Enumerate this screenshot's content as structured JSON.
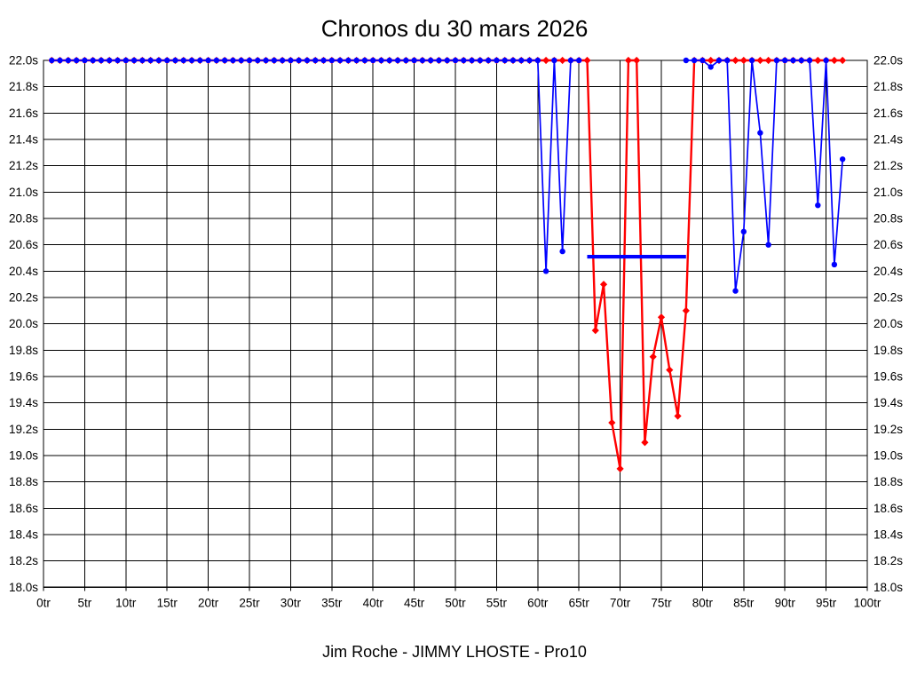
{
  "chart_data": {
    "type": "line",
    "title": "Chronos du 30 mars 2026",
    "subtitle": "Jim Roche - JIMMY LHOSTE - Pro10",
    "x_unit": "tr",
    "y_unit": "s",
    "xlim": [
      0,
      100
    ],
    "ylim": [
      18.0,
      22.0
    ],
    "x_ticks": [
      0,
      5,
      10,
      15,
      20,
      25,
      30,
      35,
      40,
      45,
      50,
      55,
      60,
      65,
      70,
      75,
      80,
      85,
      90,
      95,
      100
    ],
    "y_ticks": [
      22.0,
      21.8,
      21.6,
      21.4,
      21.2,
      21.0,
      20.8,
      20.6,
      20.4,
      20.2,
      20.0,
      19.8,
      19.6,
      19.4,
      19.2,
      19.0,
      18.8,
      18.6,
      18.4,
      18.2,
      18.0
    ],
    "grid": true,
    "legend": "none",
    "first_lap": 1,
    "series": [
      {
        "name": "red",
        "color": "#ff0000",
        "marker": "diamond",
        "values": [
          22.0,
          22.0,
          22.0,
          22.0,
          22.0,
          22.0,
          22.0,
          22.0,
          22.0,
          22.0,
          22.0,
          22.0,
          22.0,
          22.0,
          22.0,
          22.0,
          22.0,
          22.0,
          22.0,
          22.0,
          22.0,
          22.0,
          22.0,
          22.0,
          22.0,
          22.0,
          22.0,
          22.0,
          22.0,
          22.0,
          22.0,
          22.0,
          22.0,
          22.0,
          22.0,
          22.0,
          22.0,
          22.0,
          22.0,
          22.0,
          22.0,
          22.0,
          22.0,
          22.0,
          22.0,
          22.0,
          22.0,
          22.0,
          22.0,
          22.0,
          22.0,
          22.0,
          22.0,
          22.0,
          22.0,
          22.0,
          22.0,
          22.0,
          22.0,
          22.0,
          22.0,
          22.0,
          22.0,
          22.0,
          22.0,
          22.0,
          19.95,
          20.3,
          19.25,
          18.9,
          22.0,
          22.0,
          19.1,
          19.75,
          20.05,
          19.65,
          19.3,
          20.1,
          22.0,
          22.0,
          22.0,
          22.0,
          22.0,
          22.0,
          22.0,
          22.0,
          22.0,
          22.0,
          22.0,
          22.0,
          22.0,
          22.0,
          22.0,
          22.0,
          22.0,
          22.0,
          22.0
        ]
      },
      {
        "name": "blue",
        "color": "#0000ff",
        "marker": "circle",
        "values": [
          22.0,
          22.0,
          22.0,
          22.0,
          22.0,
          22.0,
          22.0,
          22.0,
          22.0,
          22.0,
          22.0,
          22.0,
          22.0,
          22.0,
          22.0,
          22.0,
          22.0,
          22.0,
          22.0,
          22.0,
          22.0,
          22.0,
          22.0,
          22.0,
          22.0,
          22.0,
          22.0,
          22.0,
          22.0,
          22.0,
          22.0,
          22.0,
          22.0,
          22.0,
          22.0,
          22.0,
          22.0,
          22.0,
          22.0,
          22.0,
          22.0,
          22.0,
          22.0,
          22.0,
          22.0,
          22.0,
          22.0,
          22.0,
          22.0,
          22.0,
          22.0,
          22.0,
          22.0,
          22.0,
          22.0,
          22.0,
          22.0,
          22.0,
          22.0,
          22.0,
          20.4,
          22.0,
          20.55,
          22.0,
          22.0,
          null,
          null,
          null,
          null,
          null,
          null,
          null,
          null,
          null,
          null,
          null,
          null,
          22.0,
          22.0,
          22.0,
          21.95,
          22.0,
          22.0,
          20.25,
          20.7,
          22.0,
          21.45,
          20.6,
          22.0,
          22.0,
          22.0,
          22.0,
          22.0,
          20.9,
          22.0,
          20.45,
          21.25
        ]
      }
    ],
    "overlay_segment": {
      "x1": 66,
      "x2": 78,
      "y": 20.51,
      "color": "#0000ff"
    }
  }
}
